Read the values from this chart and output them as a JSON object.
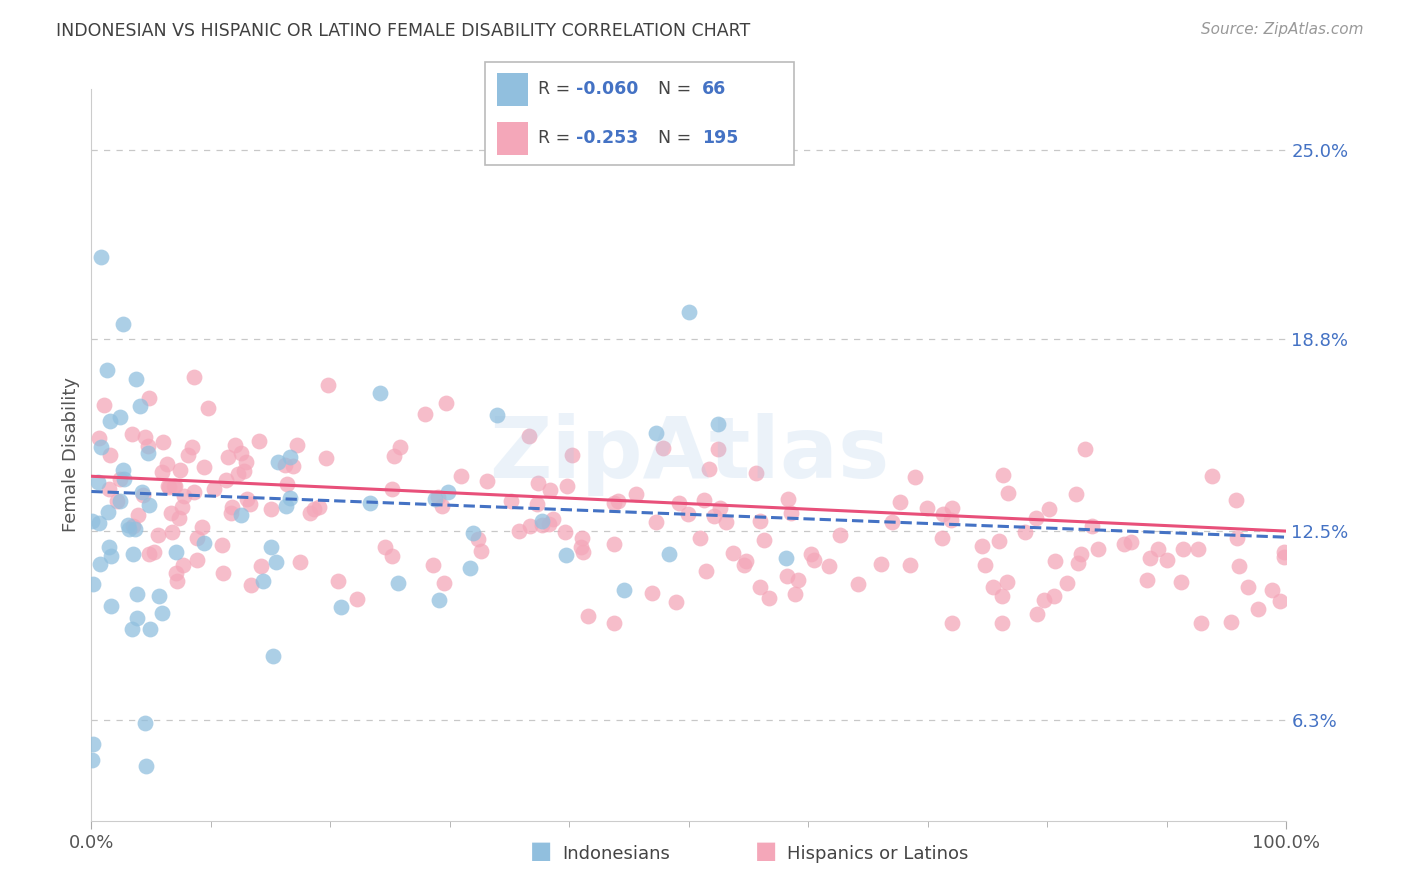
{
  "title": "INDONESIAN VS HISPANIC OR LATINO FEMALE DISABILITY CORRELATION CHART",
  "source": "Source: ZipAtlas.com",
  "ylabel": "Female Disability",
  "xlim": [
    0,
    100
  ],
  "ylim": [
    3.0,
    27.0
  ],
  "yticks": [
    6.3,
    12.5,
    18.8,
    25.0
  ],
  "ytick_labels": [
    "6.3%",
    "12.5%",
    "18.8%",
    "25.0%"
  ],
  "color_indonesian": "#91BFDE",
  "color_hispanic": "#F4A7B9",
  "color_trend_indonesian": "#4472C4",
  "color_trend_hispanic": "#E8507A",
  "color_title": "#404040",
  "color_source": "#999999",
  "color_ytick": "#4472C4",
  "color_grid": "#C8C8C8",
  "legend_r1_val": "-0.060",
  "legend_n1_val": "66",
  "legend_r2_val": "-0.253",
  "legend_n2_val": "195",
  "ind_trend_start_y": 13.8,
  "ind_trend_end_y": 12.3,
  "his_trend_start_y": 14.3,
  "his_trend_end_y": 12.5
}
